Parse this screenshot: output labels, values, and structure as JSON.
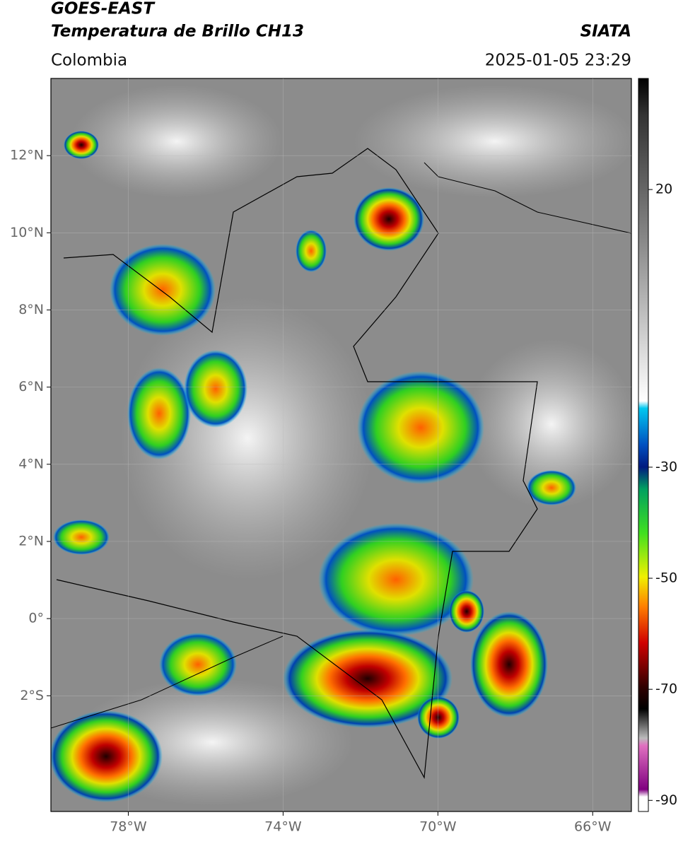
{
  "header": {
    "title_line1": "GOES-EAST",
    "title_line2": "Temperatura de Brillo CH13",
    "source": "SIATA",
    "region": "Colombia",
    "datetime": "2025-01-05 23:29"
  },
  "map": {
    "xlim": [
      -80,
      -65
    ],
    "ylim": [
      -5,
      14
    ],
    "xticks": [
      {
        "value": -78,
        "label": "78°W"
      },
      {
        "value": -74,
        "label": "74°W"
      },
      {
        "value": -70,
        "label": "70°W"
      },
      {
        "value": -66,
        "label": "66°W"
      }
    ],
    "yticks": [
      {
        "value": 12,
        "label": "12°N"
      },
      {
        "value": 10,
        "label": "10°N"
      },
      {
        "value": 8,
        "label": "8°N"
      },
      {
        "value": 6,
        "label": "6°N"
      },
      {
        "value": 4,
        "label": "4°N"
      },
      {
        "value": 2,
        "label": "2°N"
      },
      {
        "value": 0,
        "label": "0°"
      },
      {
        "value": -2,
        "label": "2°S"
      }
    ],
    "grid": true
  },
  "colorbar": {
    "lim": [
      -92,
      40
    ],
    "ticks": [
      20,
      -30,
      -50,
      -70,
      -90
    ]
  }
}
